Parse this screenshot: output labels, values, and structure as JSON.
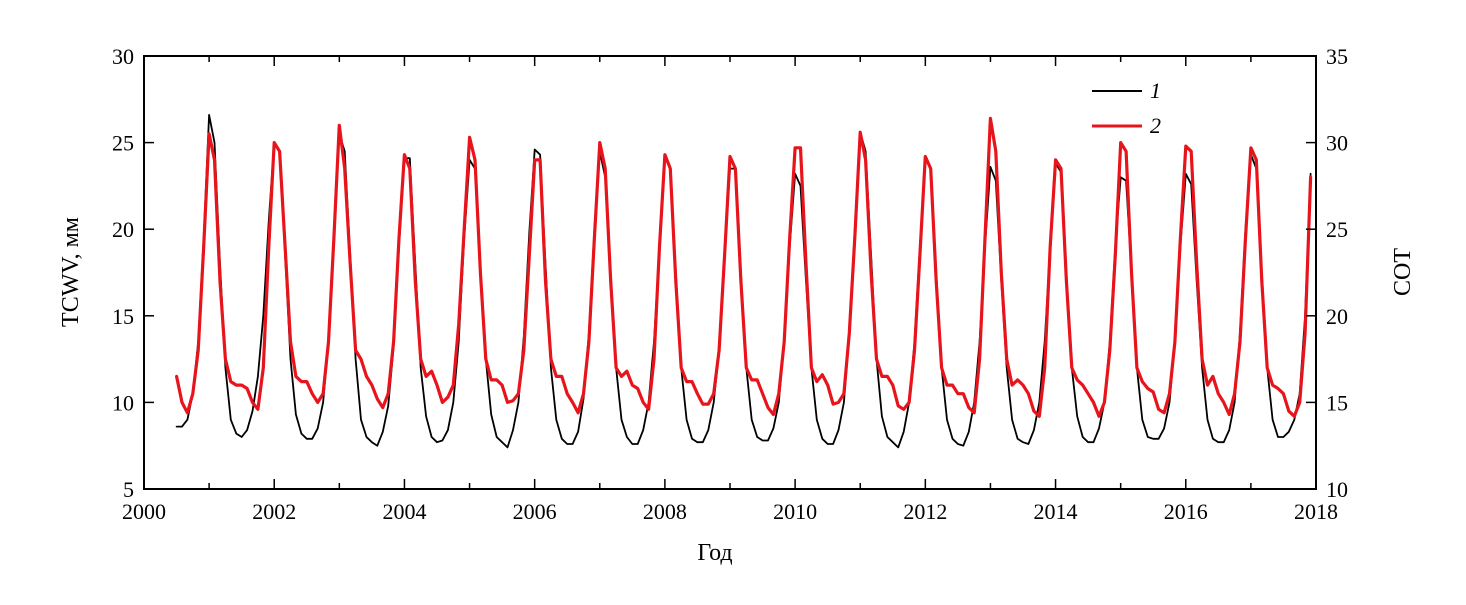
{
  "chart_data": {
    "type": "line",
    "title": "",
    "xlabel": "Год",
    "ylabel_left": "TCWV, мм",
    "ylabel_right": "COT",
    "xlim": [
      2000,
      2018
    ],
    "ylim_left": [
      5,
      30
    ],
    "ylim_right": [
      10,
      35
    ],
    "x_ticks": [
      "2000",
      "2002",
      "2004",
      "2006",
      "2008",
      "2010",
      "2012",
      "2014",
      "2016",
      "2018"
    ],
    "y_ticks_left": [
      "5",
      "10",
      "15",
      "20",
      "25",
      "30"
    ],
    "y_ticks_right": [
      "10",
      "15",
      "20",
      "25",
      "30",
      "35"
    ],
    "grid": false,
    "legend_position": "top-right",
    "series": [
      {
        "name": "1",
        "axis": "left",
        "color": "#000000",
        "x": [
          2000.5,
          2000.583,
          2000.667,
          2000.75,
          2000.833,
          2000.917,
          2001.0,
          2001.083,
          2001.167,
          2001.25,
          2001.333,
          2001.417,
          2001.5,
          2001.583,
          2001.667,
          2001.75,
          2001.833,
          2001.917,
          2002.0,
          2002.083,
          2002.167,
          2002.25,
          2002.333,
          2002.417,
          2002.5,
          2002.583,
          2002.667,
          2002.75,
          2002.833,
          2002.917,
          2003.0,
          2003.083,
          2003.167,
          2003.25,
          2003.333,
          2003.417,
          2003.5,
          2003.583,
          2003.667,
          2003.75,
          2003.833,
          2003.917,
          2004.0,
          2004.083,
          2004.167,
          2004.25,
          2004.333,
          2004.417,
          2004.5,
          2004.583,
          2004.667,
          2004.75,
          2004.833,
          2004.917,
          2005.0,
          2005.083,
          2005.167,
          2005.25,
          2005.333,
          2005.417,
          2005.5,
          2005.583,
          2005.667,
          2005.75,
          2005.833,
          2005.917,
          2006.0,
          2006.083,
          2006.167,
          2006.25,
          2006.333,
          2006.417,
          2006.5,
          2006.583,
          2006.667,
          2006.75,
          2006.833,
          2006.917,
          2007.0,
          2007.083,
          2007.167,
          2007.25,
          2007.333,
          2007.417,
          2007.5,
          2007.583,
          2007.667,
          2007.75,
          2007.833,
          2007.917,
          2008.0,
          2008.083,
          2008.167,
          2008.25,
          2008.333,
          2008.417,
          2008.5,
          2008.583,
          2008.667,
          2008.75,
          2008.833,
          2008.917,
          2009.0,
          2009.083,
          2009.167,
          2009.25,
          2009.333,
          2009.417,
          2009.5,
          2009.583,
          2009.667,
          2009.75,
          2009.833,
          2009.917,
          2010.0,
          2010.083,
          2010.167,
          2010.25,
          2010.333,
          2010.417,
          2010.5,
          2010.583,
          2010.667,
          2010.75,
          2010.833,
          2010.917,
          2011.0,
          2011.083,
          2011.167,
          2011.25,
          2011.333,
          2011.417,
          2011.5,
          2011.583,
          2011.667,
          2011.75,
          2011.833,
          2011.917,
          2012.0,
          2012.083,
          2012.167,
          2012.25,
          2012.333,
          2012.417,
          2012.5,
          2012.583,
          2012.667,
          2012.75,
          2012.833,
          2012.917,
          2013.0,
          2013.083,
          2013.167,
          2013.25,
          2013.333,
          2013.417,
          2013.5,
          2013.583,
          2013.667,
          2013.75,
          2013.833,
          2013.917,
          2014.0,
          2014.083,
          2014.167,
          2014.25,
          2014.333,
          2014.417,
          2014.5,
          2014.583,
          2014.667,
          2014.75,
          2014.833,
          2014.917,
          2015.0,
          2015.083,
          2015.167,
          2015.25,
          2015.333,
          2015.417,
          2015.5,
          2015.583,
          2015.667,
          2015.75,
          2015.833,
          2015.917,
          2016.0,
          2016.083,
          2016.167,
          2016.25,
          2016.333,
          2016.417,
          2016.5,
          2016.583,
          2016.667,
          2016.75,
          2016.833,
          2016.917,
          2017.0,
          2017.083,
          2017.167,
          2017.25,
          2017.333,
          2017.417,
          2017.5,
          2017.583,
          2017.667,
          2017.75,
          2017.833,
          2017.917
        ],
        "values": [
          8.6,
          8.6,
          9.0,
          10.5,
          13.5,
          19.5,
          26.6,
          25.0,
          18.0,
          12.0,
          9.0,
          8.2,
          8.0,
          8.4,
          9.5,
          11.5,
          15.0,
          20.5,
          25.0,
          24.5,
          18.5,
          12.5,
          9.3,
          8.2,
          7.9,
          7.9,
          8.5,
          10.0,
          13.5,
          19.5,
          25.5,
          24.5,
          18.5,
          12.5,
          9.0,
          8.0,
          7.7,
          7.5,
          8.3,
          9.8,
          13.2,
          19.0,
          24.1,
          24.1,
          18.0,
          12.0,
          9.2,
          8.0,
          7.7,
          7.8,
          8.4,
          10.0,
          13.5,
          19.5,
          24.0,
          23.5,
          17.5,
          12.5,
          9.3,
          8.0,
          7.7,
          7.4,
          8.4,
          10.0,
          13.8,
          19.8,
          24.6,
          24.3,
          18.0,
          12.0,
          9.0,
          7.9,
          7.6,
          7.6,
          8.3,
          10.2,
          14.0,
          20.0,
          24.5,
          23.0,
          17.5,
          12.0,
          9.0,
          8.0,
          7.6,
          7.6,
          8.4,
          10.0,
          13.5,
          19.0,
          24.2,
          23.5,
          17.5,
          12.0,
          9.0,
          7.9,
          7.7,
          7.7,
          8.4,
          10.0,
          13.0,
          18.5,
          23.5,
          23.5,
          17.5,
          12.0,
          9.0,
          8.0,
          7.8,
          7.8,
          8.5,
          10.0,
          13.5,
          19.0,
          23.2,
          22.5,
          17.0,
          12.0,
          9.0,
          7.9,
          7.6,
          7.6,
          8.4,
          10.0,
          14.0,
          20.0,
          25.6,
          24.5,
          18.5,
          12.5,
          9.2,
          8.0,
          7.7,
          7.4,
          8.3,
          10.0,
          13.5,
          19.0,
          24.2,
          23.5,
          17.5,
          12.0,
          9.0,
          7.9,
          7.6,
          7.5,
          8.3,
          10.0,
          13.5,
          19.0,
          23.6,
          22.8,
          17.0,
          12.0,
          9.0,
          7.9,
          7.7,
          7.6,
          8.4,
          10.0,
          13.5,
          19.0,
          23.8,
          23.3,
          17.5,
          12.0,
          9.2,
          8.0,
          7.7,
          7.7,
          8.5,
          10.0,
          13.5,
          19.0,
          23.0,
          22.8,
          17.5,
          12.0,
          9.0,
          8.0,
          7.9,
          7.9,
          8.5,
          10.0,
          13.5,
          19.0,
          23.2,
          22.6,
          17.0,
          12.0,
          9.0,
          7.9,
          7.7,
          7.7,
          8.4,
          10.0,
          14.0,
          20.0,
          24.3,
          23.5,
          17.5,
          12.0,
          9.0,
          8.0,
          8.0,
          8.3,
          9.0,
          10.5,
          15.0,
          23.2
        ]
      },
      {
        "name": "2",
        "axis": "right",
        "color": "#e8141c",
        "x": [
          2000.5,
          2000.583,
          2000.667,
          2000.75,
          2000.833,
          2000.917,
          2001.0,
          2001.083,
          2001.167,
          2001.25,
          2001.333,
          2001.417,
          2001.5,
          2001.583,
          2001.667,
          2001.75,
          2001.833,
          2001.917,
          2002.0,
          2002.083,
          2002.167,
          2002.25,
          2002.333,
          2002.417,
          2002.5,
          2002.583,
          2002.667,
          2002.75,
          2002.833,
          2002.917,
          2003.0,
          2003.083,
          2003.167,
          2003.25,
          2003.333,
          2003.417,
          2003.5,
          2003.583,
          2003.667,
          2003.75,
          2003.833,
          2003.917,
          2004.0,
          2004.083,
          2004.167,
          2004.25,
          2004.333,
          2004.417,
          2004.5,
          2004.583,
          2004.667,
          2004.75,
          2004.833,
          2004.917,
          2005.0,
          2005.083,
          2005.167,
          2005.25,
          2005.333,
          2005.417,
          2005.5,
          2005.583,
          2005.667,
          2005.75,
          2005.833,
          2005.917,
          2006.0,
          2006.083,
          2006.167,
          2006.25,
          2006.333,
          2006.417,
          2006.5,
          2006.583,
          2006.667,
          2006.75,
          2006.833,
          2006.917,
          2007.0,
          2007.083,
          2007.167,
          2007.25,
          2007.333,
          2007.417,
          2007.5,
          2007.583,
          2007.667,
          2007.75,
          2007.833,
          2007.917,
          2008.0,
          2008.083,
          2008.167,
          2008.25,
          2008.333,
          2008.417,
          2008.5,
          2008.583,
          2008.667,
          2008.75,
          2008.833,
          2008.917,
          2009.0,
          2009.083,
          2009.167,
          2009.25,
          2009.333,
          2009.417,
          2009.5,
          2009.583,
          2009.667,
          2009.75,
          2009.833,
          2009.917,
          2010.0,
          2010.083,
          2010.167,
          2010.25,
          2010.333,
          2010.417,
          2010.5,
          2010.583,
          2010.667,
          2010.75,
          2010.833,
          2010.917,
          2011.0,
          2011.083,
          2011.167,
          2011.25,
          2011.333,
          2011.417,
          2011.5,
          2011.583,
          2011.667,
          2011.75,
          2011.833,
          2011.917,
          2012.0,
          2012.083,
          2012.167,
          2012.25,
          2012.333,
          2012.417,
          2012.5,
          2012.583,
          2012.667,
          2012.75,
          2012.833,
          2012.917,
          2013.0,
          2013.083,
          2013.167,
          2013.25,
          2013.333,
          2013.417,
          2013.5,
          2013.583,
          2013.667,
          2013.75,
          2013.833,
          2013.917,
          2014.0,
          2014.083,
          2014.167,
          2014.25,
          2014.333,
          2014.417,
          2014.5,
          2014.583,
          2014.667,
          2014.75,
          2014.833,
          2014.917,
          2015.0,
          2015.083,
          2015.167,
          2015.25,
          2015.333,
          2015.417,
          2015.5,
          2015.583,
          2015.667,
          2015.75,
          2015.833,
          2015.917,
          2016.0,
          2016.083,
          2016.167,
          2016.25,
          2016.333,
          2016.417,
          2016.5,
          2016.583,
          2016.667,
          2016.75,
          2016.833,
          2016.917,
          2017.0,
          2017.083,
          2017.167,
          2017.25,
          2017.333,
          2017.417,
          2017.5,
          2017.583,
          2017.667,
          2017.75,
          2017.833,
          2017.917
        ],
        "values": [
          16.5,
          15.0,
          14.4,
          15.5,
          18.0,
          24.0,
          30.5,
          29.0,
          22.0,
          17.5,
          16.2,
          16.0,
          16.0,
          15.8,
          15.0,
          14.6,
          17.0,
          24.0,
          30.0,
          29.5,
          24.0,
          18.5,
          16.5,
          16.2,
          16.2,
          15.5,
          15.0,
          15.5,
          18.5,
          24.5,
          31.0,
          28.5,
          23.0,
          18.0,
          17.5,
          16.5,
          16.0,
          15.2,
          14.7,
          15.5,
          18.5,
          24.5,
          29.3,
          28.5,
          22.0,
          17.5,
          16.5,
          16.8,
          16.0,
          15.0,
          15.3,
          16.0,
          19.5,
          25.0,
          30.3,
          29.0,
          22.5,
          17.5,
          16.3,
          16.3,
          16.0,
          15.0,
          15.1,
          15.5,
          18.0,
          23.5,
          29.0,
          29.0,
          22.0,
          17.5,
          16.5,
          16.5,
          15.5,
          15.0,
          14.4,
          15.5,
          18.5,
          24.5,
          30.0,
          28.5,
          22.0,
          17.0,
          16.5,
          16.8,
          16.0,
          15.8,
          15.0,
          14.6,
          17.5,
          24.0,
          29.3,
          28.5,
          22.0,
          17.0,
          16.2,
          16.2,
          15.5,
          14.9,
          14.9,
          15.5,
          18.0,
          23.5,
          29.2,
          28.5,
          22.0,
          17.0,
          16.3,
          16.3,
          15.5,
          14.7,
          14.3,
          15.5,
          18.5,
          24.5,
          29.7,
          29.7,
          23.0,
          17.0,
          16.2,
          16.6,
          16.0,
          14.9,
          15.0,
          15.5,
          19.0,
          24.5,
          30.6,
          29.0,
          22.5,
          17.5,
          16.5,
          16.5,
          16.0,
          14.8,
          14.6,
          15.0,
          18.0,
          23.5,
          29.2,
          28.5,
          22.0,
          17.0,
          16.0,
          16.0,
          15.5,
          15.5,
          14.7,
          14.4,
          17.5,
          24.5,
          31.4,
          29.5,
          22.5,
          17.5,
          16.0,
          16.3,
          16.0,
          15.5,
          14.5,
          14.2,
          17.0,
          24.0,
          29.0,
          28.5,
          22.0,
          17.0,
          16.3,
          16.0,
          15.5,
          15.0,
          14.2,
          15.0,
          18.0,
          23.5,
          30.0,
          29.5,
          22.5,
          17.0,
          16.2,
          15.8,
          15.6,
          14.6,
          14.4,
          15.5,
          18.5,
          24.5,
          29.8,
          29.5,
          23.0,
          17.5,
          16.0,
          16.5,
          15.5,
          15.0,
          14.3,
          15.5,
          18.5,
          24.5,
          29.7,
          29.0,
          22.0,
          17.0,
          16.0,
          15.8,
          15.5,
          14.5,
          14.2,
          15.0,
          19.0,
          28.0
        ]
      }
    ]
  }
}
